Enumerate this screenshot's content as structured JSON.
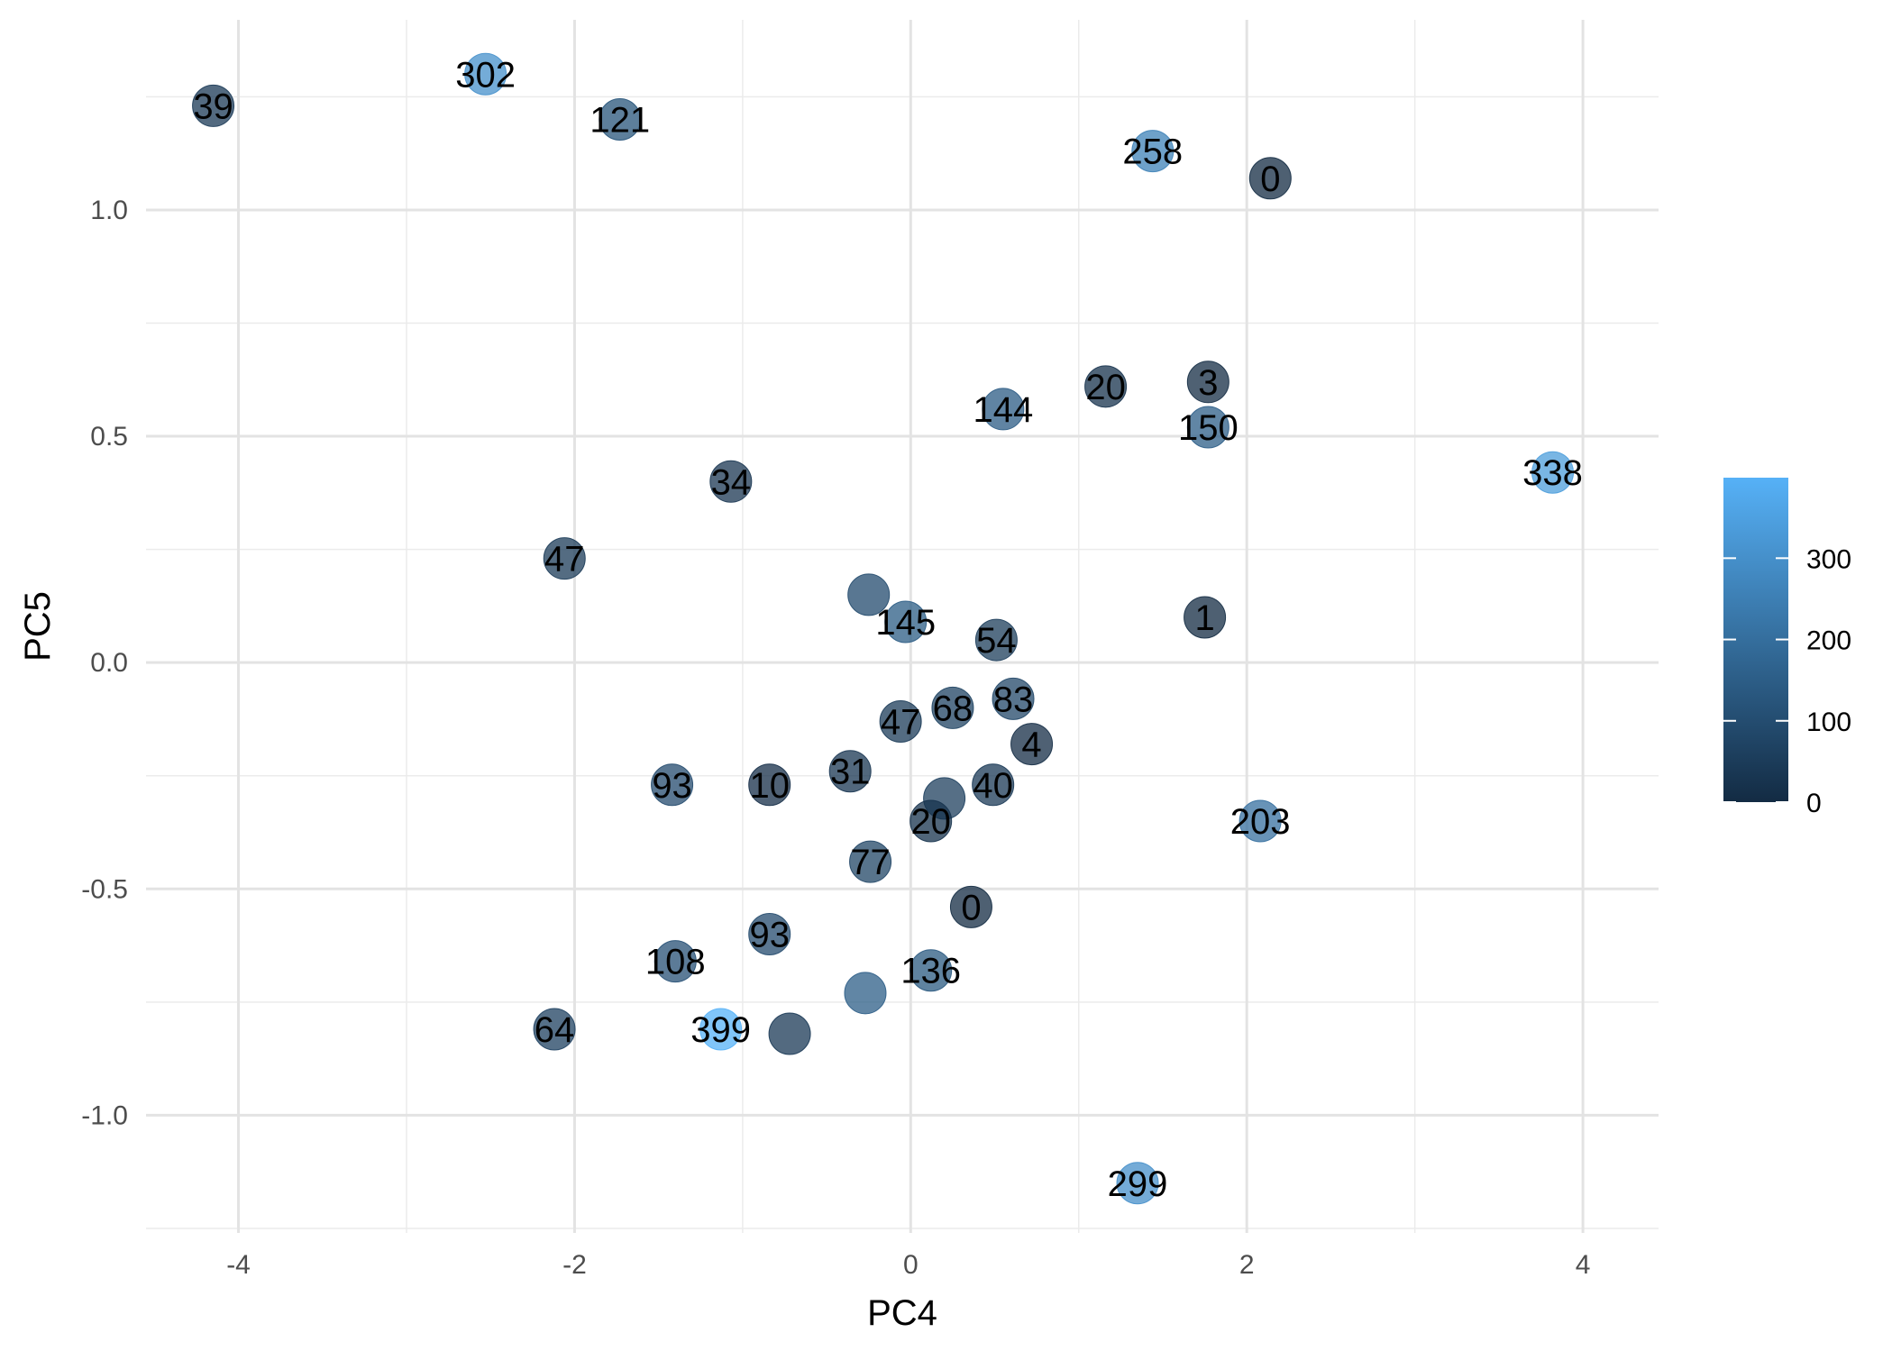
{
  "chart_data": {
    "type": "scatter",
    "title": "",
    "xlabel": "PC4",
    "ylabel": "PC5",
    "xlim": [
      -4.55,
      4.45
    ],
    "ylim": [
      -1.26,
      1.42
    ],
    "x_ticks": [
      -4,
      -2,
      0,
      2,
      4
    ],
    "x_tick_labels": [
      "-4",
      "-2",
      "0",
      "2",
      "4"
    ],
    "y_ticks": [
      -1.0,
      -0.5,
      0.0,
      0.5,
      1.0
    ],
    "y_tick_labels": [
      "-1.0",
      "-0.5",
      "0.0",
      "0.5",
      "1.0"
    ],
    "grid": true,
    "color_scale": {
      "low_color": "#132b43",
      "high_color": "#56b1f7",
      "min": 0,
      "max": 399,
      "ticks": [
        0,
        100,
        200,
        300
      ],
      "tick_labels": [
        "0",
        "100",
        "200",
        "300"
      ],
      "legend_position": "right"
    },
    "points": [
      {
        "x": -4.15,
        "y": 1.23,
        "value": 39,
        "label": "39"
      },
      {
        "x": -2.53,
        "y": 1.3,
        "value": 302,
        "label": "302"
      },
      {
        "x": -1.73,
        "y": 1.2,
        "value": 121,
        "label": "121"
      },
      {
        "x": 1.44,
        "y": 1.13,
        "value": 258,
        "label": "258"
      },
      {
        "x": 2.14,
        "y": 1.07,
        "value": 0,
        "label": "0"
      },
      {
        "x": 1.16,
        "y": 0.61,
        "value": 20,
        "label": "20"
      },
      {
        "x": 1.77,
        "y": 0.62,
        "value": 3,
        "label": "3"
      },
      {
        "x": 0.55,
        "y": 0.56,
        "value": 144,
        "label": "144"
      },
      {
        "x": 1.77,
        "y": 0.52,
        "value": 150,
        "label": "150"
      },
      {
        "x": 3.82,
        "y": 0.42,
        "value": 338,
        "label": "338"
      },
      {
        "x": -1.07,
        "y": 0.4,
        "value": 34,
        "label": "34"
      },
      {
        "x": -2.06,
        "y": 0.23,
        "value": 47,
        "label": "47"
      },
      {
        "x": -0.03,
        "y": 0.09,
        "value": 145,
        "label": "145"
      },
      {
        "x": 0.51,
        "y": 0.05,
        "value": 54,
        "label": "54"
      },
      {
        "x": 1.75,
        "y": 0.1,
        "value": 1,
        "label": "1"
      },
      {
        "x": -0.25,
        "y": 0.15,
        "value": 92,
        "label": ""
      },
      {
        "x": 0.61,
        "y": -0.08,
        "value": 83,
        "label": "83"
      },
      {
        "x": 0.25,
        "y": -0.1,
        "value": 68,
        "label": "68"
      },
      {
        "x": -0.06,
        "y": -0.13,
        "value": 47,
        "label": "47"
      },
      {
        "x": 0.72,
        "y": -0.18,
        "value": 4,
        "label": "4"
      },
      {
        "x": -0.36,
        "y": -0.24,
        "value": 31,
        "label": "31"
      },
      {
        "x": 0.49,
        "y": -0.27,
        "value": 40,
        "label": "40"
      },
      {
        "x": 0.2,
        "y": -0.3,
        "value": 60,
        "label": ""
      },
      {
        "x": -1.42,
        "y": -0.27,
        "value": 93,
        "label": "93"
      },
      {
        "x": -0.84,
        "y": -0.27,
        "value": 10,
        "label": "10"
      },
      {
        "x": 0.12,
        "y": -0.35,
        "value": 20,
        "label": "20"
      },
      {
        "x": 2.08,
        "y": -0.35,
        "value": 203,
        "label": "203"
      },
      {
        "x": -0.24,
        "y": -0.44,
        "value": 77,
        "label": "77"
      },
      {
        "x": 0.36,
        "y": -0.54,
        "value": 0,
        "label": "0"
      },
      {
        "x": -0.84,
        "y": -0.6,
        "value": 93,
        "label": "93"
      },
      {
        "x": -1.4,
        "y": -0.66,
        "value": 108,
        "label": "108"
      },
      {
        "x": 0.12,
        "y": -0.68,
        "value": 136,
        "label": "136"
      },
      {
        "x": -0.27,
        "y": -0.73,
        "value": 150,
        "label": ""
      },
      {
        "x": -2.12,
        "y": -0.81,
        "value": 64,
        "label": "64"
      },
      {
        "x": -1.13,
        "y": -0.81,
        "value": 399,
        "label": "399"
      },
      {
        "x": -0.72,
        "y": -0.82,
        "value": 40,
        "label": ""
      },
      {
        "x": 1.35,
        "y": -1.15,
        "value": 299,
        "label": "299"
      }
    ]
  }
}
